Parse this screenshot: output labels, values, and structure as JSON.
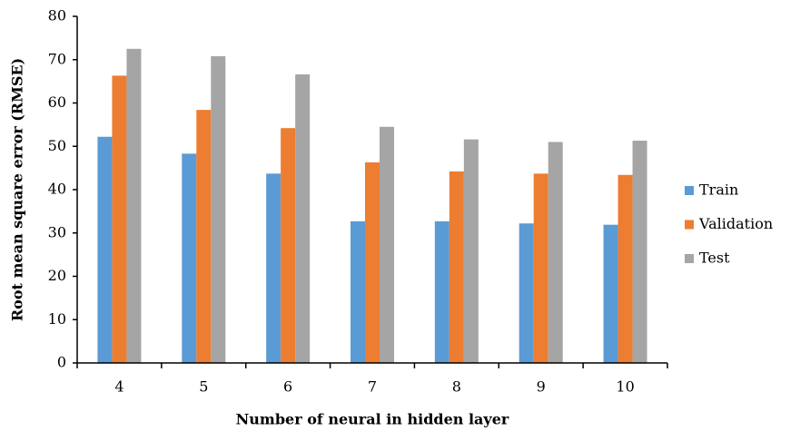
{
  "chart_data": {
    "type": "bar",
    "x_label": "Number of neural in hidden layer",
    "y_label": "Root mean square error (RMSE)",
    "categories": [
      "4",
      "5",
      "6",
      "7",
      "8",
      "9",
      "10"
    ],
    "series": [
      {
        "name": "Train",
        "color": "#5b9bd5",
        "values": [
          52.2,
          48.3,
          43.7,
          32.7,
          32.7,
          32.2,
          31.9
        ]
      },
      {
        "name": "Validation",
        "color": "#ed7d31",
        "values": [
          66.3,
          58.4,
          54.2,
          46.3,
          44.2,
          43.7,
          43.4
        ]
      },
      {
        "name": "Test",
        "color": "#a5a5a5",
        "values": [
          72.5,
          70.8,
          66.6,
          54.5,
          51.6,
          51.0,
          51.3
        ]
      }
    ],
    "ylim": [
      0,
      80
    ],
    "yticks": [
      0,
      10,
      20,
      30,
      40,
      50,
      60,
      70,
      80
    ],
    "legend": "right",
    "grid": false
  }
}
